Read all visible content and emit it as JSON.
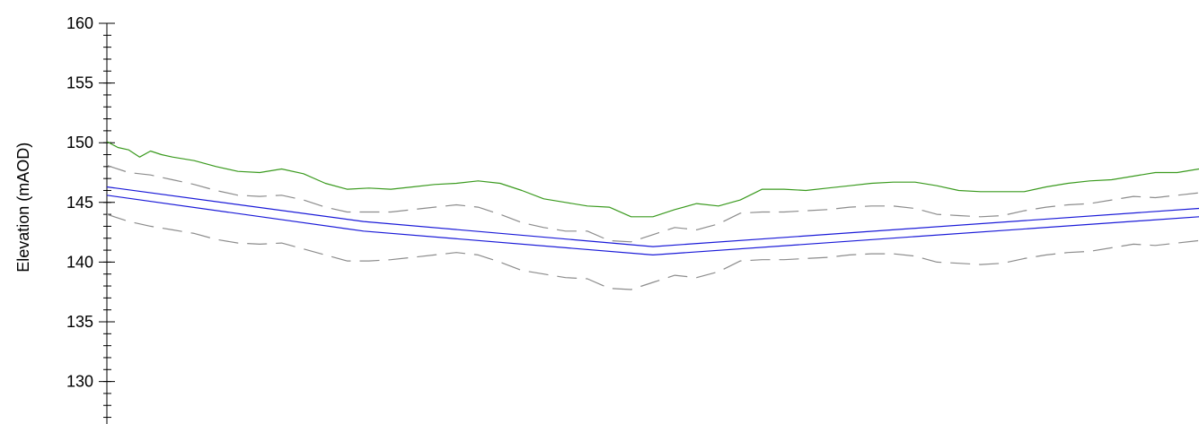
{
  "chart_data": {
    "type": "line",
    "title": "",
    "xlabel": "",
    "ylabel": "Elevation (mAOD)",
    "ylim": [
      126.5,
      160
    ],
    "xlim": [
      0,
      100
    ],
    "y_ticks": [
      160,
      155,
      150,
      145,
      140,
      135,
      130
    ],
    "y_minor_step": 1,
    "grid": false,
    "legend": "none",
    "colors": {
      "ground": "#3a9a1e",
      "design": "#1a1ad8",
      "envelope": "#8c8c8c",
      "axis": "#000000"
    },
    "series": [
      {
        "key": "ground",
        "style": "solid",
        "x": [
          0,
          1,
          2,
          3,
          4,
          5,
          6,
          8,
          10,
          12,
          14,
          16,
          18,
          20,
          22,
          24,
          26,
          28,
          30,
          32,
          34,
          36,
          38,
          40,
          42,
          44,
          46,
          48,
          50,
          52,
          54,
          56,
          58,
          60,
          62,
          64,
          66,
          68,
          70,
          72,
          74,
          76,
          78,
          80,
          82,
          84,
          86,
          88,
          90,
          92,
          94,
          96,
          98,
          100
        ],
        "y": [
          150.1,
          149.6,
          149.4,
          148.8,
          149.3,
          149.0,
          148.8,
          148.5,
          148.0,
          147.6,
          147.5,
          147.8,
          147.4,
          146.6,
          146.1,
          146.2,
          146.1,
          146.3,
          146.5,
          146.6,
          146.8,
          146.6,
          146.0,
          145.3,
          145.0,
          144.7,
          144.6,
          143.8,
          143.8,
          144.4,
          144.9,
          144.7,
          145.2,
          146.1,
          146.1,
          146.0,
          146.2,
          146.4,
          146.6,
          146.7,
          146.7,
          146.4,
          146.0,
          145.9,
          145.9,
          145.9,
          146.3,
          146.6,
          146.8,
          146.9,
          147.2,
          147.5,
          147.5,
          147.8
        ]
      },
      {
        "key": "upper_envelope",
        "style": "dashed",
        "x": [
          0,
          2,
          4,
          6,
          8,
          10,
          12,
          14,
          16,
          18,
          20,
          22,
          24,
          26,
          28,
          30,
          32,
          34,
          36,
          38,
          40,
          42,
          44,
          46,
          48,
          50,
          52,
          54,
          56,
          58,
          60,
          62,
          64,
          66,
          68,
          70,
          72,
          74,
          76,
          78,
          80,
          82,
          84,
          86,
          88,
          90,
          92,
          94,
          96,
          98,
          100
        ],
        "y": [
          148.1,
          147.5,
          147.3,
          146.9,
          146.5,
          146.0,
          145.6,
          145.5,
          145.6,
          145.2,
          144.6,
          144.2,
          144.2,
          144.2,
          144.4,
          144.6,
          144.8,
          144.6,
          144.0,
          143.3,
          142.9,
          142.6,
          142.6,
          141.8,
          141.7,
          142.3,
          142.9,
          142.7,
          143.2,
          144.1,
          144.2,
          144.2,
          144.3,
          144.4,
          144.6,
          144.7,
          144.7,
          144.5,
          144.0,
          143.9,
          143.8,
          143.9,
          144.3,
          144.6,
          144.8,
          144.9,
          145.2,
          145.5,
          145.4,
          145.6,
          145.8
        ]
      },
      {
        "key": "lower_envelope",
        "style": "dashed",
        "x": [
          0,
          2,
          4,
          6,
          8,
          10,
          12,
          14,
          16,
          18,
          20,
          22,
          24,
          26,
          28,
          30,
          32,
          34,
          36,
          38,
          40,
          42,
          44,
          46,
          48,
          50,
          52,
          54,
          56,
          58,
          60,
          62,
          64,
          66,
          68,
          70,
          72,
          74,
          76,
          78,
          80,
          82,
          84,
          86,
          88,
          90,
          92,
          94,
          96,
          98,
          100
        ],
        "y": [
          144.0,
          143.4,
          143.0,
          142.7,
          142.4,
          141.9,
          141.6,
          141.5,
          141.6,
          141.1,
          140.6,
          140.1,
          140.1,
          140.2,
          140.4,
          140.6,
          140.8,
          140.6,
          140.0,
          139.3,
          139.0,
          138.7,
          138.6,
          137.8,
          137.7,
          138.3,
          138.9,
          138.7,
          139.2,
          140.1,
          140.2,
          140.2,
          140.3,
          140.4,
          140.6,
          140.7,
          140.7,
          140.5,
          140.0,
          139.9,
          139.8,
          139.9,
          140.3,
          140.6,
          140.8,
          140.9,
          141.2,
          141.5,
          141.4,
          141.6,
          141.8
        ]
      },
      {
        "key": "design_upper",
        "style": "solid",
        "x": [
          0,
          23.5,
          50,
          100
        ],
        "y": [
          146.3,
          143.4,
          141.3,
          144.5
        ]
      },
      {
        "key": "design_lower",
        "style": "solid",
        "x": [
          0,
          23.5,
          50,
          100
        ],
        "y": [
          145.6,
          142.6,
          140.6,
          143.8
        ]
      }
    ]
  }
}
